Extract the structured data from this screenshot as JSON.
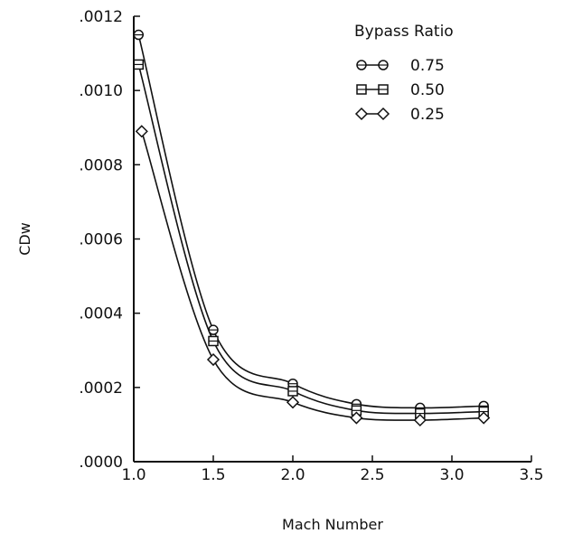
{
  "chart_data": {
    "type": "line",
    "title": "",
    "xlabel": "Mach Number",
    "ylabel": "CDw",
    "xlim": [
      1.0,
      3.5
    ],
    "ylim": [
      0.0,
      0.0012
    ],
    "x_ticks": [
      1.0,
      1.5,
      2.0,
      2.5,
      3.0,
      3.5
    ],
    "x_tick_labels": [
      "1.0",
      "1.5",
      "2.0",
      "2.5",
      "3.0",
      "3.5"
    ],
    "y_ticks": [
      0.0,
      0.0002,
      0.0004,
      0.0006,
      0.0008,
      0.001,
      0.0012
    ],
    "y_tick_labels": [
      ".0000",
      ".0002",
      ".0004",
      ".0006",
      ".0008",
      ".0010",
      ".0012"
    ],
    "grid": false,
    "legend": {
      "title": "Bypass Ratio",
      "placement": "top-right"
    },
    "series": [
      {
        "name": "0.75",
        "marker": "circle",
        "x": [
          1.03,
          1.5,
          2.0,
          2.4,
          2.8,
          3.2
        ],
        "y": [
          0.00115,
          0.000355,
          0.00021,
          0.000155,
          0.000145,
          0.00015
        ]
      },
      {
        "name": "0.50",
        "marker": "square",
        "x": [
          1.03,
          1.5,
          2.0,
          2.4,
          2.8,
          3.2
        ],
        "y": [
          0.00107,
          0.000325,
          0.00019,
          0.000138,
          0.00013,
          0.000135
        ]
      },
      {
        "name": "0.25",
        "marker": "diamond",
        "x": [
          1.05,
          1.5,
          2.0,
          2.4,
          2.8,
          3.2
        ],
        "y": [
          0.00089,
          0.000275,
          0.00016,
          0.000118,
          0.000112,
          0.000118
        ]
      }
    ]
  }
}
